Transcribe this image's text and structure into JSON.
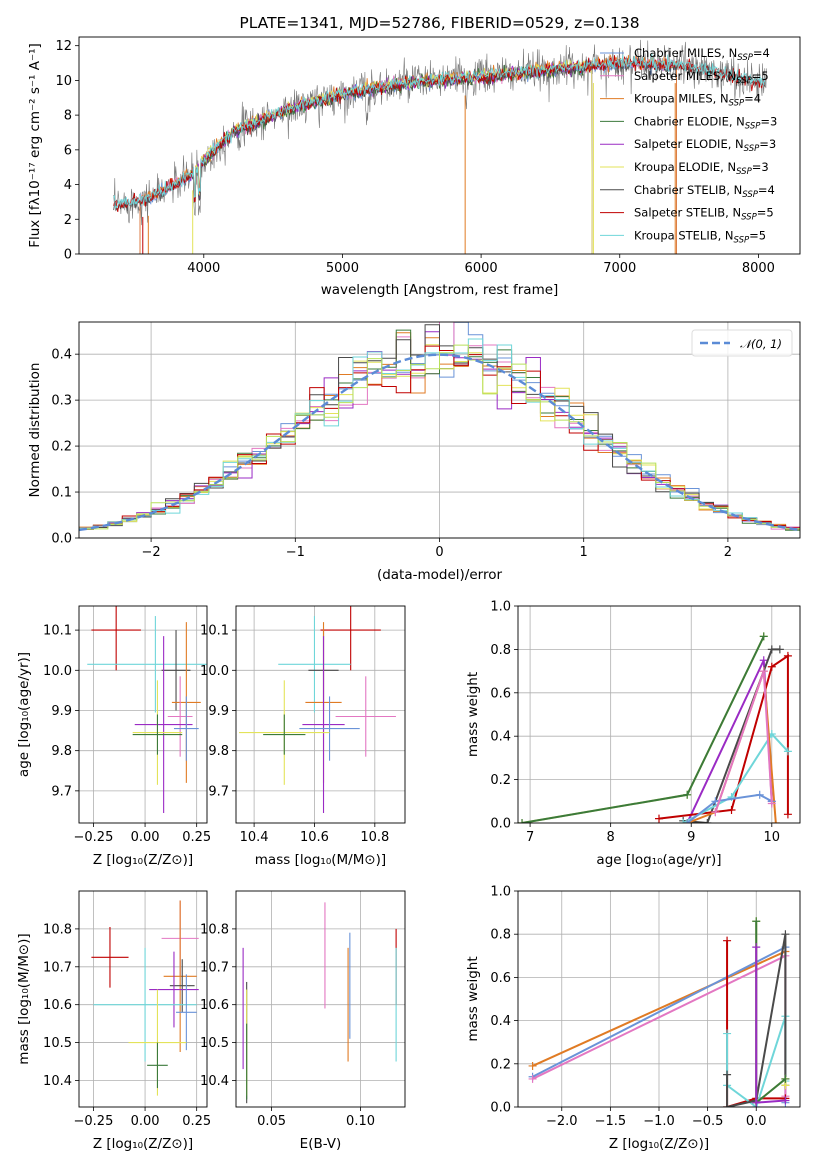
{
  "colors": {
    "Chabrier MILES": "#6a93d8",
    "Salpeter MILES": "#e377c2",
    "Kroupa MILES": "#e07b24",
    "Chabrier ELODIE": "#3b7a3b",
    "Salpeter ELODIE": "#9a2bc4",
    "Kroupa ELODIE": "#e3e35a",
    "Chabrier STELIB": "#4a4a4a",
    "Salpeter STELIB": "#c00000",
    "Kroupa STELIB": "#6fd6d9",
    "lime": "#b8e05a",
    "normal": "#5b8bd6",
    "grid": "#b0b0b0"
  },
  "chart_data": [
    {
      "id": "spectrum",
      "type": "line",
      "title": "PLATE=1341, MJD=52786, FIBERID=0529, z=0.138",
      "xlabel": "wavelength [Angstrom, rest frame]",
      "ylabel": "Flux [fλ10⁻¹⁷ erg cm⁻² s⁻¹ A⁻¹]",
      "xlim": [
        3100,
        8300
      ],
      "ylim": [
        0,
        12.5
      ],
      "xticks": [
        4000,
        5000,
        6000,
        7000,
        8000
      ],
      "yticks": [
        0,
        2,
        4,
        6,
        8,
        10,
        12
      ],
      "grid": false,
      "legend_position": "right",
      "continuum_model": [
        [
          3350,
          2.8
        ],
        [
          3600,
          3.2
        ],
        [
          3900,
          4.5
        ],
        [
          4200,
          7.0
        ],
        [
          4600,
          8.3
        ],
        [
          5000,
          9.2
        ],
        [
          5500,
          9.9
        ],
        [
          6000,
          10.2
        ],
        [
          6500,
          10.6
        ],
        [
          7000,
          11.0
        ],
        [
          7500,
          10.8
        ],
        [
          8050,
          9.8
        ]
      ],
      "legend": [
        {
          "label": "Chabrier MILES, N",
          "sub": "SSP",
          "suffix": "=4"
        },
        {
          "label": "Salpeter MILES, N",
          "sub": "SSP",
          "suffix": "=5"
        },
        {
          "label": "Kroupa MILES, N",
          "sub": "SSP",
          "suffix": "=4"
        },
        {
          "label": "Chabrier ELODIE, N",
          "sub": "SSP",
          "suffix": "=3"
        },
        {
          "label": "Salpeter ELODIE, N",
          "sub": "SSP",
          "suffix": "=3"
        },
        {
          "label": "Kroupa ELODIE, N",
          "sub": "SSP",
          "suffix": "=3"
        },
        {
          "label": "Chabrier STELIB, N",
          "sub": "SSP",
          "suffix": "=4"
        },
        {
          "label": "Salpeter STELIB, N",
          "sub": "SSP",
          "suffix": "=5"
        },
        {
          "label": "Kroupa STELIB, N",
          "sub": "SSP",
          "suffix": "=5"
        }
      ]
    },
    {
      "id": "residuals",
      "type": "line",
      "xlabel": "(data-model)/error",
      "ylabel": "Normed distribution",
      "xlim": [
        -2.5,
        2.5
      ],
      "ylim": [
        0,
        0.47
      ],
      "xticks": [
        -2,
        -1,
        0,
        1,
        2
      ],
      "yticks": [
        0.0,
        0.1,
        0.2,
        0.3,
        0.4
      ],
      "grid": true,
      "legend_label": "𝒩(0, 1)",
      "legend_position": "top-right"
    },
    {
      "id": "age_vs_Z",
      "type": "scatter",
      "xlabel": "Z [log₁₀(Z/Z⊙)]",
      "ylabel": "age  [log₁₀(age/yr)]",
      "xlim": [
        -0.32,
        0.3
      ],
      "ylim": [
        9.62,
        10.16
      ],
      "xticks": [
        -0.25,
        0.0,
        0.25
      ],
      "yticks": [
        9.7,
        9.8,
        9.9,
        10.0,
        10.1
      ],
      "grid": true,
      "points": [
        {
          "model": "Salpeter STELIB",
          "x": -0.14,
          "xerr": 0.12,
          "y": 10.1,
          "yerr": 0.1
        },
        {
          "model": "Kroupa STELIB",
          "x": 0.05,
          "xerr": 0.33,
          "y": 10.015,
          "yerr": 0.12
        },
        {
          "model": "Chabrier STELIB",
          "x": 0.15,
          "xerr": 0.07,
          "y": 10.0,
          "yerr": 0.1
        },
        {
          "model": "Kroupa MILES",
          "x": 0.2,
          "xerr": 0.07,
          "y": 9.92,
          "yerr": 0.2
        },
        {
          "model": "Salpeter MILES",
          "x": 0.17,
          "xerr": 0.06,
          "y": 9.885,
          "yerr": 0.1
        },
        {
          "model": "Salpeter ELODIE",
          "x": 0.09,
          "xerr": 0.14,
          "y": 9.865,
          "yerr": 0.22
        },
        {
          "model": "Chabrier MILES",
          "x": 0.2,
          "xerr": 0.06,
          "y": 9.855,
          "yerr": 0.08
        },
        {
          "model": "Kroupa ELODIE",
          "x": 0.06,
          "xerr": 0.12,
          "y": 9.845,
          "yerr": 0.13
        },
        {
          "model": "Chabrier ELODIE",
          "x": 0.06,
          "xerr": 0.12,
          "y": 9.84,
          "yerr": 0.05
        }
      ]
    },
    {
      "id": "age_vs_mass",
      "type": "scatter",
      "xlabel": "mass [log₁₀(M/M⊙)]",
      "ylabel": "",
      "xlim": [
        10.34,
        10.9
      ],
      "ylim": [
        9.62,
        10.16
      ],
      "xticks": [
        10.4,
        10.6,
        10.8
      ],
      "yticks": [
        9.7,
        9.8,
        9.9,
        10.0,
        10.1
      ],
      "grid": true,
      "points": [
        {
          "model": "Salpeter STELIB",
          "x": 10.72,
          "xerr": 0.1,
          "y": 10.1,
          "yerr": 0.1
        },
        {
          "model": "Kroupa STELIB",
          "x": 10.6,
          "xerr": 0.12,
          "y": 10.015,
          "yerr": 0.12
        },
        {
          "model": "Chabrier STELIB",
          "x": 10.63,
          "xerr": 0.05,
          "y": 10.0,
          "yerr": 0.1
        },
        {
          "model": "Kroupa MILES",
          "x": 10.63,
          "xerr": 0.06,
          "y": 9.92,
          "yerr": 0.2
        },
        {
          "model": "Salpeter MILES",
          "x": 10.77,
          "xerr": 0.1,
          "y": 9.885,
          "yerr": 0.1
        },
        {
          "model": "Salpeter ELODIE",
          "x": 10.63,
          "xerr": 0.07,
          "y": 9.865,
          "yerr": 0.22
        },
        {
          "model": "Chabrier MILES",
          "x": 10.65,
          "xerr": 0.1,
          "y": 9.855,
          "yerr": 0.08
        },
        {
          "model": "Kroupa ELODIE",
          "x": 10.5,
          "xerr": 0.15,
          "y": 9.845,
          "yerr": 0.13
        },
        {
          "model": "Chabrier ELODIE",
          "x": 10.5,
          "xerr": 0.07,
          "y": 9.84,
          "yerr": 0.05
        }
      ]
    },
    {
      "id": "weight_vs_age",
      "type": "line",
      "xlabel": "age  [log₁₀(age/yr)]",
      "ylabel": "mass weight",
      "xlim": [
        6.85,
        10.35
      ],
      "ylim": [
        0,
        1.0
      ],
      "xticks": [
        7,
        8,
        9,
        10
      ],
      "yticks": [
        0.0,
        0.2,
        0.4,
        0.6,
        0.8,
        1.0
      ],
      "grid": true,
      "series": [
        {
          "model": "Kroupa ELODIE",
          "x": [
            6.9,
            8.95,
            9.9
          ],
          "y": [
            0.0,
            0.13,
            0.86
          ]
        },
        {
          "model": "Chabrier ELODIE",
          "x": [
            6.9,
            8.95,
            9.9
          ],
          "y": [
            0.0,
            0.13,
            0.86
          ]
        },
        {
          "model": "Salpeter ELODIE",
          "x": [
            8.95,
            9.9,
            10.0
          ],
          "y": [
            0.0,
            0.75,
            0.1
          ]
        },
        {
          "model": "Chabrier STELIB",
          "x": [
            8.9,
            9.2,
            10.0,
            10.1
          ],
          "y": [
            0.01,
            0.0,
            0.8,
            0.8
          ]
        },
        {
          "model": "Salpeter STELIB",
          "x": [
            8.6,
            9.5,
            10.0,
            10.2,
            10.2
          ],
          "y": [
            0.02,
            0.06,
            0.72,
            0.77,
            0.04
          ]
        },
        {
          "model": "Kroupa STELIB",
          "x": [
            8.9,
            9.5,
            10.0,
            10.2
          ],
          "y": [
            0.0,
            0.12,
            0.41,
            0.33
          ]
        },
        {
          "model": "Kroupa MILES",
          "x": [
            8.95,
            9.3,
            9.9,
            10.05
          ],
          "y": [
            0.0,
            0.05,
            0.7,
            0.0
          ]
        },
        {
          "model": "Chabrier MILES",
          "x": [
            8.95,
            9.3,
            9.85,
            10.0
          ],
          "y": [
            0.0,
            0.1,
            0.13,
            0.1
          ]
        },
        {
          "model": "Salpeter MILES",
          "x": [
            9.3,
            9.9,
            10.0
          ],
          "y": [
            0.05,
            0.7,
            0.09
          ]
        }
      ]
    },
    {
      "id": "mass_vs_Z",
      "type": "scatter",
      "xlabel": "Z [log₁₀(Z/Z⊙)]",
      "ylabel": "mass [log₁₀(M/M⊙)]",
      "xlim": [
        -0.32,
        0.3
      ],
      "ylim": [
        10.33,
        10.9
      ],
      "xticks": [
        -0.25,
        0.0,
        0.25
      ],
      "yticks": [
        10.4,
        10.5,
        10.6,
        10.7,
        10.8
      ],
      "grid": true,
      "points": [
        {
          "model": "Salpeter MILES",
          "x": 0.17,
          "xerr": 0.09,
          "y": 10.775,
          "yerr": 0.1
        },
        {
          "model": "Salpeter STELIB",
          "x": -0.17,
          "xerr": 0.09,
          "y": 10.725,
          "yerr": 0.08
        },
        {
          "model": "Kroupa MILES",
          "x": 0.17,
          "xerr": 0.08,
          "y": 10.675,
          "yerr": 0.2
        },
        {
          "model": "Chabrier STELIB",
          "x": 0.18,
          "xerr": 0.06,
          "y": 10.65,
          "yerr": 0.07
        },
        {
          "model": "Salpeter ELODIE",
          "x": 0.14,
          "xerr": 0.12,
          "y": 10.64,
          "yerr": 0.1
        },
        {
          "model": "Kroupa STELIB",
          "x": 0.0,
          "xerr": 0.25,
          "y": 10.6,
          "yerr": 0.15
        },
        {
          "model": "Chabrier MILES",
          "x": 0.2,
          "xerr": 0.05,
          "y": 10.58,
          "yerr": 0.1
        },
        {
          "model": "Kroupa ELODIE",
          "x": 0.06,
          "xerr": 0.14,
          "y": 10.5,
          "yerr": 0.14
        },
        {
          "model": "Chabrier ELODIE",
          "x": 0.06,
          "xerr": 0.05,
          "y": 10.44,
          "yerr": 0.06
        }
      ]
    },
    {
      "id": "mass_vs_ebv",
      "type": "scatter",
      "xlabel": "E(B-V)",
      "ylabel": "",
      "xlim": [
        0.03,
        0.125
      ],
      "ylim": [
        10.33,
        10.9
      ],
      "xticks": [
        0.05,
        0.1
      ],
      "yticks": [
        10.4,
        10.5,
        10.6,
        10.7,
        10.8
      ],
      "grid": true,
      "points": [
        {
          "model": "Salpeter MILES",
          "x": 0.08,
          "y": 10.73,
          "yerr": 0.14
        },
        {
          "model": "Salpeter STELIB",
          "x": 0.12,
          "y": 10.7,
          "yerr": 0.1
        },
        {
          "model": "Kroupa STELIB",
          "x": 0.12,
          "y": 10.6,
          "yerr": 0.15
        },
        {
          "model": "Kroupa MILES",
          "x": 0.093,
          "y": 10.6,
          "yerr": 0.15
        },
        {
          "model": "Chabrier MILES",
          "x": 0.094,
          "y": 10.65,
          "yerr": 0.14
        },
        {
          "model": "Salpeter ELODIE",
          "x": 0.034,
          "y": 10.59,
          "yerr": 0.16
        },
        {
          "model": "Chabrier STELIB",
          "x": 0.036,
          "y": 10.5,
          "yerr": 0.16
        },
        {
          "model": "Kroupa ELODIE",
          "x": 0.036,
          "y": 10.5,
          "yerr": 0.14
        },
        {
          "model": "Chabrier ELODIE",
          "x": 0.036,
          "y": 10.45,
          "yerr": 0.1
        }
      ]
    },
    {
      "id": "weight_vs_Z",
      "type": "line",
      "xlabel": "Z [log₁₀(Z/Z⊙)]",
      "ylabel": "mass weight",
      "xlim": [
        -2.45,
        0.45
      ],
      "ylim": [
        0,
        1.0
      ],
      "xticks": [
        -2.0,
        -1.5,
        -1.0,
        -0.5,
        0.0
      ],
      "yticks": [
        0.0,
        0.2,
        0.4,
        0.6,
        0.8,
        1.0
      ],
      "grid": true,
      "series": [
        {
          "model": "Kroupa MILES",
          "x": [
            -2.3,
            0.3,
            0.3
          ],
          "y": [
            0.19,
            0.72,
            0.13
          ]
        },
        {
          "model": "Chabrier MILES",
          "x": [
            -2.3,
            0.3,
            0.3
          ],
          "y": [
            0.14,
            0.74,
            0.02
          ]
        },
        {
          "model": "Salpeter MILES",
          "x": [
            -2.3,
            0.3,
            0.3
          ],
          "y": [
            0.13,
            0.7,
            0.05
          ]
        },
        {
          "model": "Salpeter STELIB",
          "x": [
            -0.3,
            -0.3,
            0.0,
            0.3
          ],
          "y": [
            0.77,
            0.0,
            0.04,
            0.04
          ]
        },
        {
          "model": "Kroupa STELIB",
          "x": [
            -0.3,
            -0.3,
            0.0,
            0.3,
            0.3
          ],
          "y": [
            0.34,
            0.1,
            0.0,
            0.42,
            0.12
          ]
        },
        {
          "model": "Chabrier STELIB",
          "x": [
            -0.3,
            -0.3,
            0.0,
            0.3,
            0.3
          ],
          "y": [
            0.15,
            0.0,
            0.03,
            0.8,
            0.1
          ]
        },
        {
          "model": "Kroupa ELODIE",
          "x": [
            0.0,
            0.0,
            0.3,
            0.3
          ],
          "y": [
            0.86,
            0.02,
            0.13,
            0.1
          ]
        },
        {
          "model": "Chabrier ELODIE",
          "x": [
            0.0,
            0.0,
            0.3
          ],
          "y": [
            0.86,
            0.02,
            0.13
          ]
        },
        {
          "model": "Salpeter ELODIE",
          "x": [
            0.0,
            0.0,
            0.3
          ],
          "y": [
            0.74,
            0.02,
            0.03
          ]
        }
      ]
    }
  ]
}
